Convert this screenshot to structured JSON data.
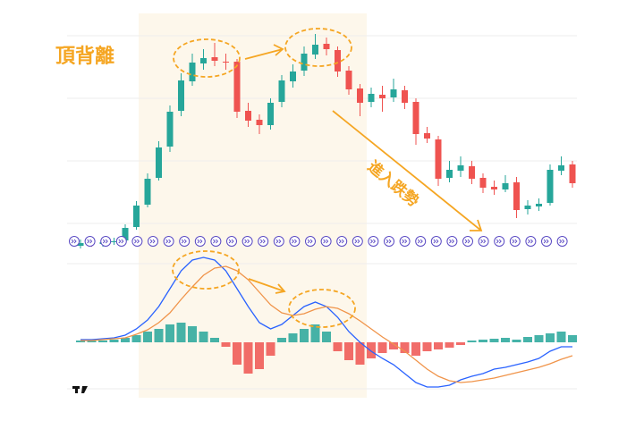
{
  "chart_data": [
    {
      "type": "candlestick",
      "annotations": [
        {
          "text": "頂背離"
        },
        {
          "text": "進入跌勢"
        }
      ],
      "up_color": "#26a69a",
      "down_color": "#ef5350",
      "ylim": [
        0,
        300
      ],
      "open": [
        25,
        28,
        27,
        29,
        31,
        46,
        71,
        101,
        136,
        176,
        209,
        229,
        236,
        231,
        231,
        176,
        166,
        160,
        186,
        209,
        221,
        239,
        251,
        244,
        221,
        201,
        186,
        194,
        191,
        199,
        186,
        151,
        144,
        101,
        109,
        114,
        101,
        91,
        88,
        96,
        66,
        69,
        73,
        109,
        116
      ],
      "high": [
        32,
        31,
        33,
        34,
        49,
        75,
        106,
        142,
        182,
        218,
        240,
        245,
        252,
        240,
        234,
        185,
        172,
        190,
        216,
        228,
        248,
        262,
        258,
        248,
        226,
        206,
        202,
        204,
        212,
        204,
        190,
        158,
        148,
        120,
        125,
        120,
        106,
        98,
        104,
        102,
        76,
        78,
        116,
        125,
        120
      ],
      "low": [
        22,
        24,
        24,
        26,
        29,
        43,
        68,
        98,
        130,
        170,
        204,
        222,
        226,
        222,
        168,
        158,
        150,
        155,
        180,
        202,
        215,
        234,
        238,
        214,
        194,
        170,
        180,
        175,
        186,
        178,
        138,
        140,
        92,
        96,
        102,
        94,
        84,
        82,
        85,
        56,
        60,
        64,
        70,
        104,
        90
      ],
      "close": [
        28,
        27,
        29,
        30,
        45,
        70,
        100,
        135,
        175,
        210,
        230,
        235,
        232,
        230,
        175,
        165,
        160,
        185,
        210,
        220,
        240,
        250,
        245,
        220,
        200,
        185,
        195,
        190,
        200,
        185,
        150,
        145,
        100,
        110,
        115,
        100,
        90,
        88,
        95,
        65,
        70,
        72,
        110,
        115,
        95
      ]
    },
    {
      "type": "macd",
      "ylim": [
        -60,
        100
      ],
      "positive_color": "#26a69a",
      "negative_color": "#ef5350",
      "histogram": [
        2,
        3,
        2,
        3,
        5,
        8,
        12,
        15,
        20,
        22,
        18,
        12,
        5,
        -5,
        -25,
        -35,
        -30,
        -15,
        5,
        10,
        15,
        20,
        12,
        -10,
        -20,
        -25,
        -18,
        -12,
        -8,
        -12,
        -15,
        -10,
        -8,
        -6,
        -3,
        2,
        3,
        4,
        5,
        3,
        6,
        8,
        10,
        12,
        8
      ],
      "series": [
        {
          "color": "#2962ff",
          "values": [
            3,
            3,
            4,
            5,
            8,
            15,
            25,
            40,
            60,
            80,
            92,
            95,
            92,
            80,
            60,
            40,
            22,
            15,
            20,
            30,
            40,
            45,
            40,
            28,
            12,
            0,
            -10,
            -18,
            -25,
            -35,
            -45,
            -50,
            -50,
            -48,
            -42,
            -38,
            -35,
            -30,
            -28,
            -25,
            -22,
            -18,
            -10,
            -5,
            -5
          ]
        },
        {
          "color": "#f0944a",
          "values": [
            2,
            2,
            3,
            4,
            5,
            9,
            14,
            22,
            33,
            48,
            62,
            75,
            83,
            85,
            80,
            70,
            56,
            42,
            33,
            30,
            32,
            37,
            40,
            38,
            32,
            24,
            15,
            6,
            -2,
            -10,
            -20,
            -30,
            -38,
            -43,
            -45,
            -44,
            -42,
            -40,
            -37,
            -34,
            -31,
            -28,
            -24,
            -19,
            -15
          ]
        }
      ]
    }
  ]
}
